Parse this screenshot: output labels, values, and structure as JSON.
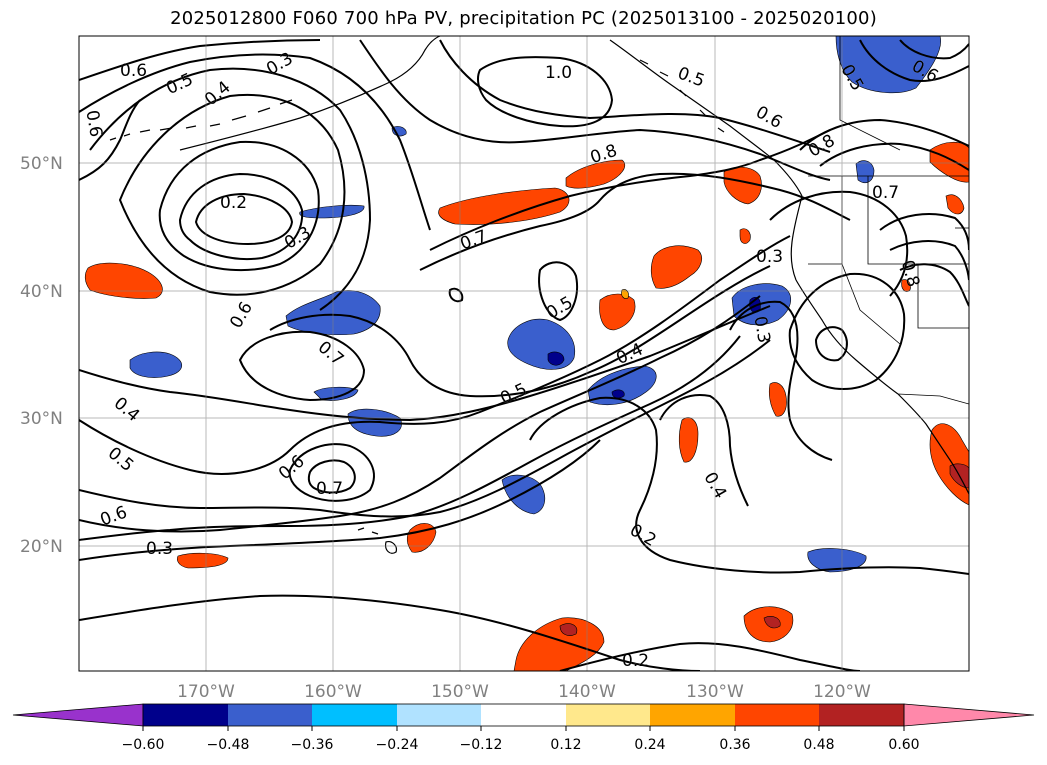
{
  "title": "2025012800 F060 700 hPa PV, precipitation PC (2025013100 - 2025020100)",
  "map": {
    "lon_ticks": [
      "170°W",
      "160°W",
      "150°W",
      "140°W",
      "130°W",
      "120°W"
    ],
    "lat_ticks": [
      "50°N",
      "40°N",
      "30°N",
      "20°N"
    ],
    "grid": true,
    "contour_color": "#000000"
  },
  "contour_labels": [
    {
      "text": "0.6",
      "name": "contour-label-06-nw"
    },
    {
      "text": "0.5",
      "name": "contour-label-05-nw"
    },
    {
      "text": "0.4",
      "name": "contour-label-04-nw"
    },
    {
      "text": "0.3",
      "name": "contour-label-03-nw"
    },
    {
      "text": "1.0",
      "name": "contour-label-10-north"
    },
    {
      "text": "0.5",
      "name": "contour-label-05-north"
    },
    {
      "text": "0.6",
      "name": "contour-label-06-ne"
    },
    {
      "text": "0.6",
      "name": "contour-label-06-ne-corner"
    },
    {
      "text": "0.5",
      "name": "contour-label-05-ne-corner"
    },
    {
      "text": "0.6",
      "name": "contour-label-06-west-edge"
    },
    {
      "text": "0.8",
      "name": "contour-label-08-central"
    },
    {
      "text": "0.8",
      "name": "contour-label-08-east"
    },
    {
      "text": "0.7",
      "name": "contour-label-07-east"
    },
    {
      "text": "0.2",
      "name": "contour-label-02-west-low"
    },
    {
      "text": "0.3",
      "name": "contour-label-03-west-low"
    },
    {
      "text": "0.7",
      "name": "contour-label-07-central"
    },
    {
      "text": "0.3",
      "name": "contour-label-03-east"
    },
    {
      "text": "0.8",
      "name": "contour-label-08-east-edge"
    },
    {
      "text": "0.6",
      "name": "contour-label-06-west-mid"
    },
    {
      "text": "0.5",
      "name": "contour-label-05-central"
    },
    {
      "text": "0.7",
      "name": "contour-label-07-west-mid"
    },
    {
      "text": "0.4",
      "name": "contour-label-04-central"
    },
    {
      "text": "0.3",
      "name": "contour-label-03-east-mid"
    },
    {
      "text": "0.5",
      "name": "contour-label-05-south-central"
    },
    {
      "text": "0.4",
      "name": "contour-label-04-west-edge"
    },
    {
      "text": "0.5",
      "name": "contour-label-05-west-edge"
    },
    {
      "text": "0.6",
      "name": "contour-label-06-southwest"
    },
    {
      "text": "0.7",
      "name": "contour-label-07-southwest"
    },
    {
      "text": "0.6",
      "name": "contour-label-06-southwest-edge"
    },
    {
      "text": "0.3",
      "name": "contour-label-03-southwest"
    },
    {
      "text": "0.4",
      "name": "contour-label-04-south-east"
    },
    {
      "text": "0.2",
      "name": "contour-label-02-south"
    },
    {
      "text": "0.2",
      "name": "contour-label-02-bottom"
    }
  ],
  "colorbar": {
    "levels": [
      "−0.60",
      "−0.48",
      "−0.36",
      "−0.24",
      "−0.12",
      "0.12",
      "0.24",
      "0.36",
      "0.48",
      "0.60"
    ],
    "colors": [
      "#9932CC",
      "#00008B",
      "#3A5FCD",
      "#00BFFF",
      "#B0E2FF",
      "#FFFFFF",
      "#FFE88C",
      "#FFA500",
      "#FF4500",
      "#B22222",
      "#FF88AA"
    ]
  }
}
